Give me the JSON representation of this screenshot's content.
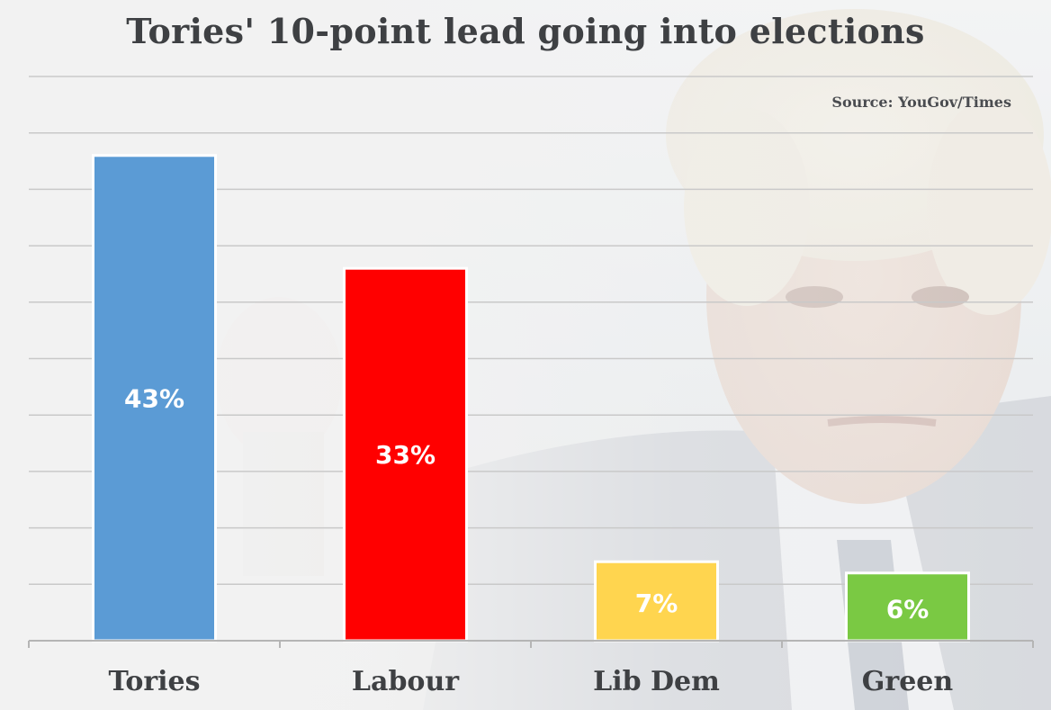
{
  "chart_data": {
    "type": "bar",
    "title": "Tories' 10-point lead going into elections",
    "source": "Source: YouGov/Times",
    "categories": [
      "Tories",
      "Labour",
      "Lib Dem",
      "Green"
    ],
    "values": [
      43,
      33,
      7,
      6
    ],
    "data_labels": [
      "43%",
      "33%",
      "7%",
      "6%"
    ],
    "colors": [
      "#5b9bd5",
      "#ff0000",
      "#ffd54f",
      "#7ac943"
    ],
    "ylim": [
      0,
      50
    ],
    "grid": true,
    "legend": "none",
    "xlabel": "",
    "ylabel": ""
  }
}
